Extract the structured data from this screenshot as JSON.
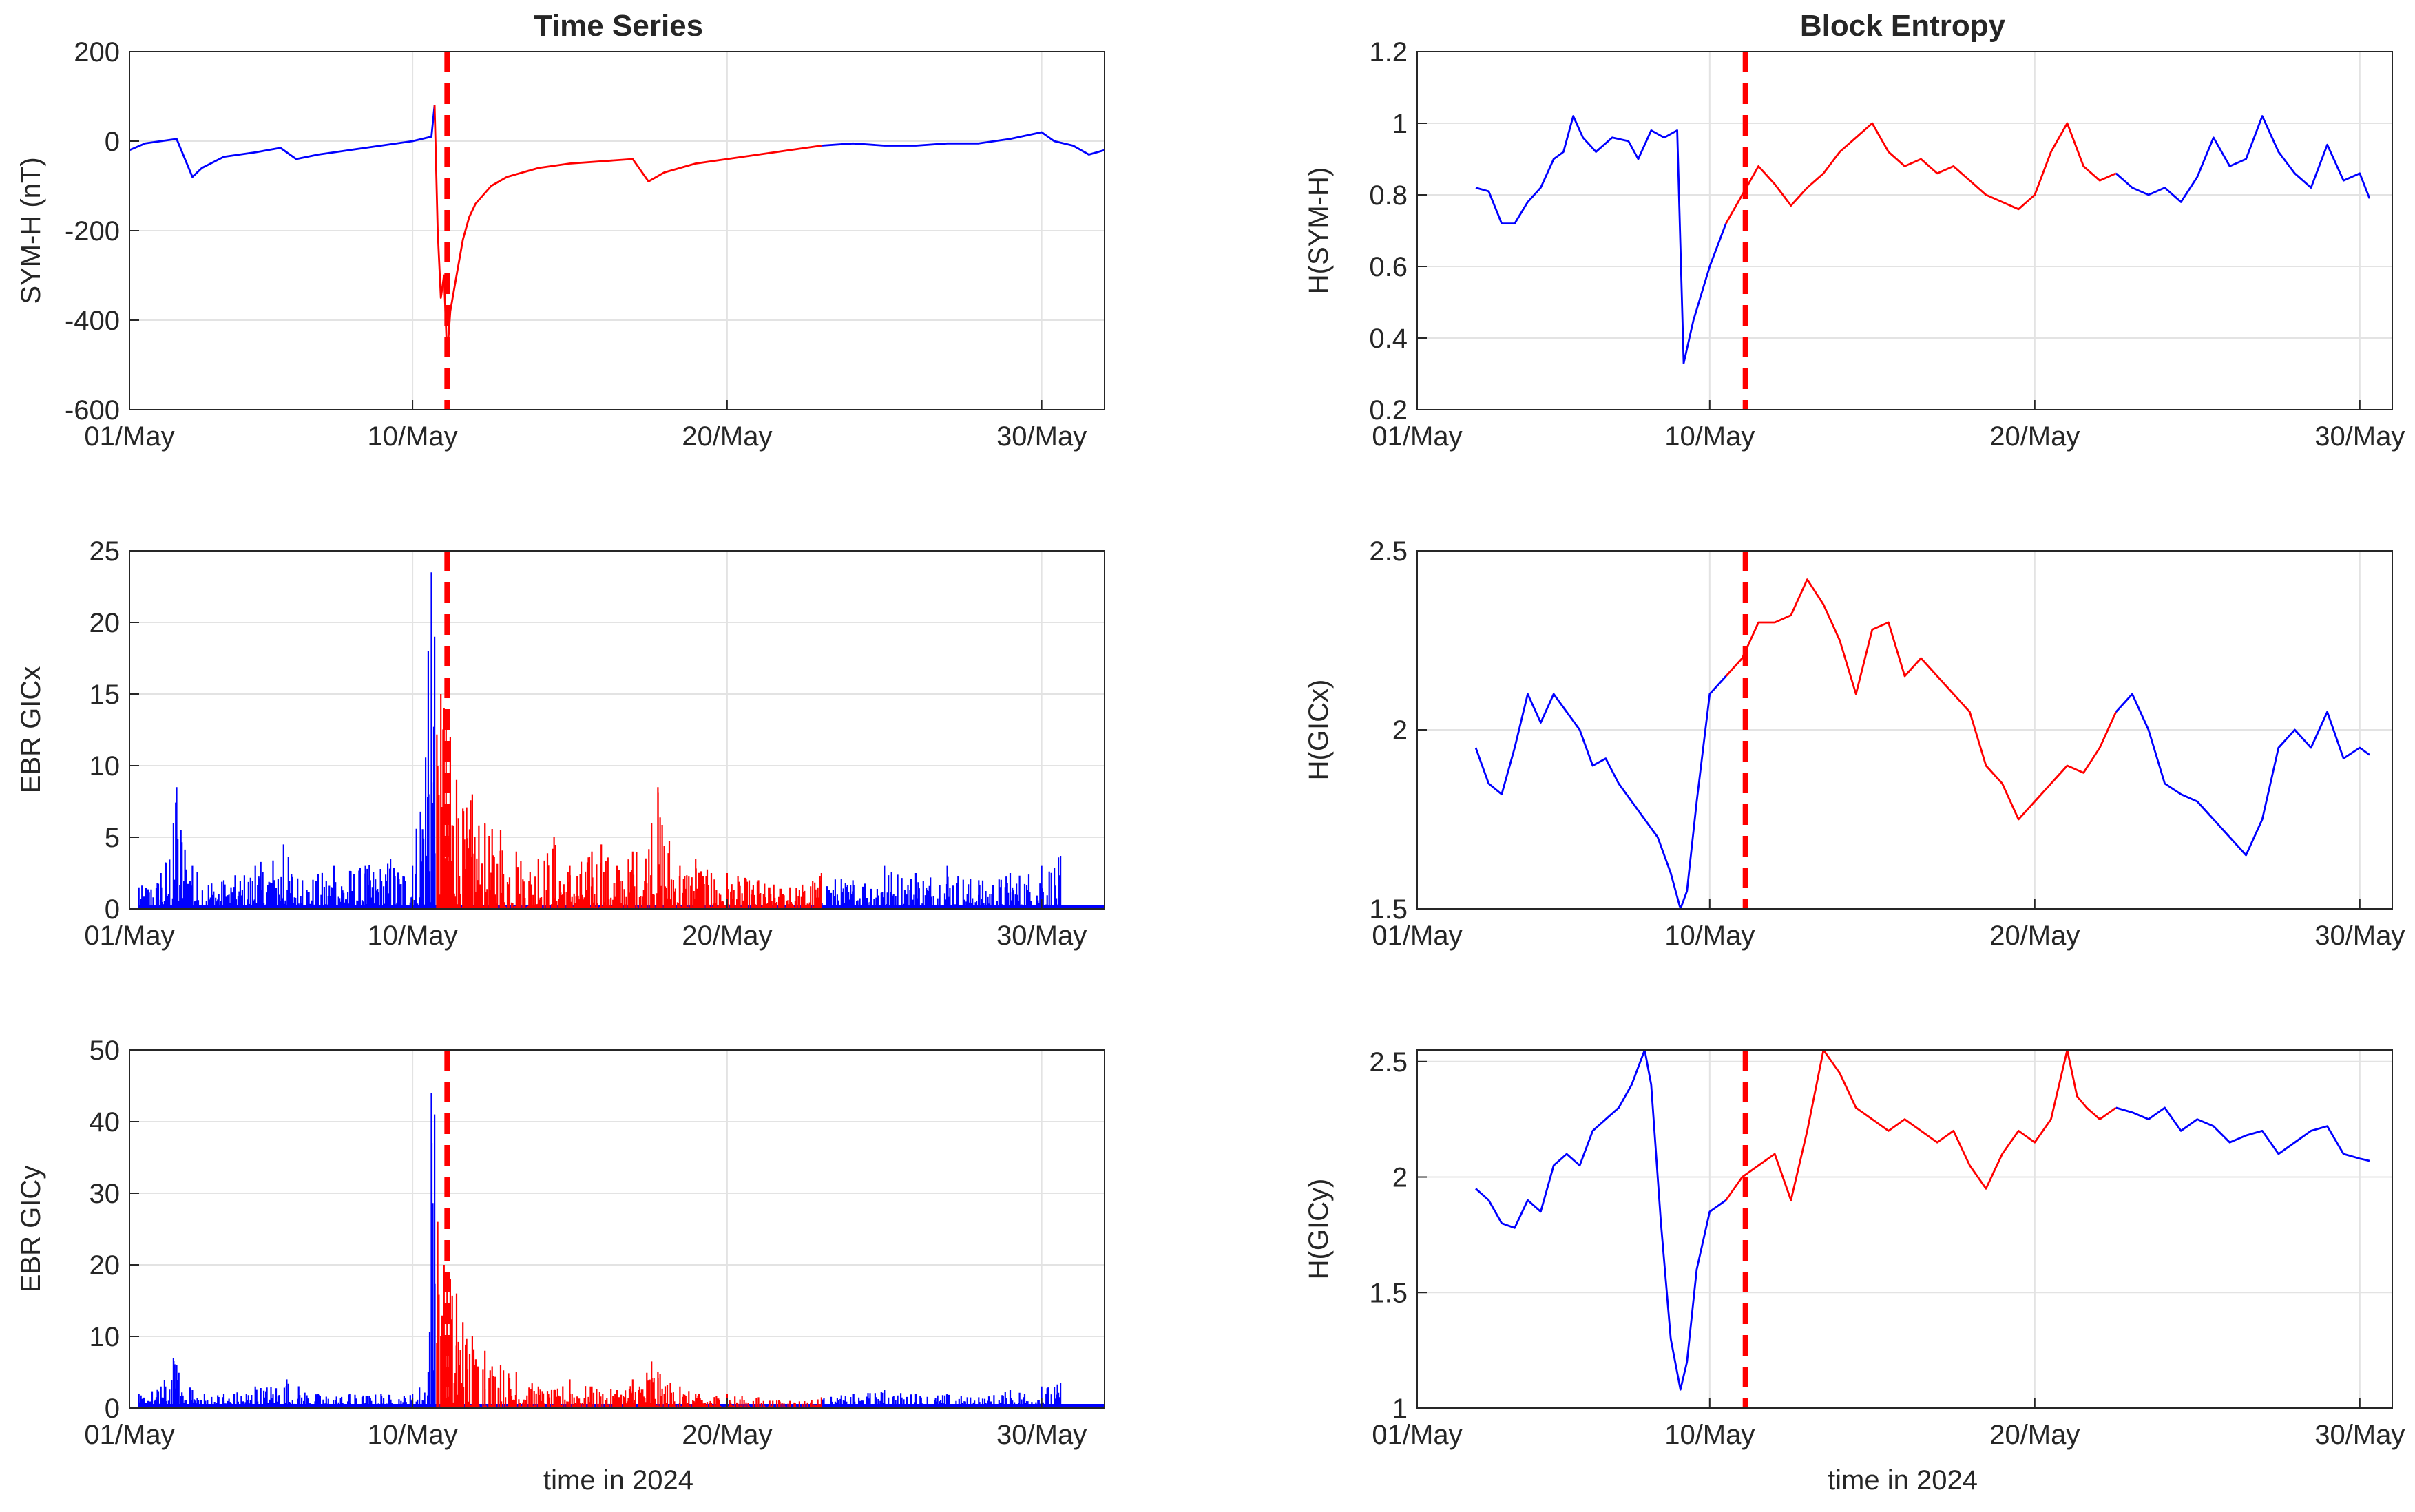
{
  "figure": {
    "columns": [
      {
        "title": "Time Series",
        "xlabel": "time in 2024"
      },
      {
        "title": "Block Entropy",
        "xlabel": "time in 2024"
      }
    ]
  },
  "colors": {
    "quiet": "#0000ff",
    "storm": "#ff0000",
    "event_line": "#ff0000",
    "grid": "#e3e3e3",
    "axes": "#262626"
  },
  "chart_data": [
    {
      "type": "line",
      "title": "Time Series",
      "ylabel": "SYM-H (nT)",
      "xlabel": "",
      "xlim": [
        1,
        32
      ],
      "ylim": [
        -600,
        200
      ],
      "xticks": [
        1,
        10,
        20,
        30
      ],
      "xtick_labels": [
        "01/May",
        "10/May",
        "20/May",
        "30/May"
      ],
      "yticks": [
        -600,
        -400,
        -200,
        0,
        200
      ],
      "ytick_labels": [
        "-600",
        "-400",
        "-200",
        "0",
        "200"
      ],
      "grid": true,
      "event_line_x": 11.1,
      "storm_interval": [
        10.75,
        23.0
      ],
      "style": "line",
      "x": [
        1,
        1.5,
        2,
        2.5,
        3,
        3.3,
        4,
        5,
        5.8,
        6.3,
        7,
        8,
        9,
        10,
        10.6,
        10.7,
        10.8,
        10.9,
        11.0,
        11.1,
        11.2,
        11.4,
        11.6,
        11.8,
        12,
        12.5,
        13,
        14,
        15,
        16,
        17,
        17.5,
        18,
        19,
        20,
        21,
        22,
        23,
        24,
        25,
        26,
        27,
        28,
        29,
        30,
        30.4,
        31,
        31.5,
        32
      ],
      "values": [
        -20,
        -5,
        0,
        5,
        -80,
        -60,
        -35,
        -25,
        -15,
        -40,
        -30,
        -20,
        -10,
        0,
        10,
        80,
        -200,
        -350,
        -300,
        -480,
        -380,
        -300,
        -220,
        -170,
        -140,
        -100,
        -80,
        -60,
        -50,
        -45,
        -40,
        -90,
        -70,
        -50,
        -40,
        -30,
        -20,
        -10,
        -5,
        -10,
        -10,
        -5,
        -5,
        5,
        20,
        0,
        -10,
        -30,
        -20
      ]
    },
    {
      "type": "line",
      "title": "Block Entropy",
      "ylabel": "H(SYM-H)",
      "xlabel": "",
      "xlim": [
        1,
        31
      ],
      "ylim": [
        0.2,
        1.2
      ],
      "xticks": [
        1,
        10,
        20,
        30
      ],
      "xtick_labels": [
        "01/May",
        "10/May",
        "20/May",
        "30/May"
      ],
      "yticks": [
        0.2,
        0.4,
        0.6,
        0.8,
        1.0,
        1.2
      ],
      "ytick_labels": [
        "0.2",
        "0.4",
        "0.6",
        "0.8",
        "1",
        "1.2"
      ],
      "grid": true,
      "event_line_x": 11.1,
      "storm_interval": [
        11.0,
        22.7
      ],
      "style": "line",
      "x": [
        2.8,
        3.2,
        3.6,
        4.0,
        4.4,
        4.8,
        5.2,
        5.5,
        5.8,
        6.1,
        6.5,
        7.0,
        7.5,
        7.8,
        8.2,
        8.6,
        9.0,
        9.2,
        9.5,
        10.0,
        10.5,
        11.0,
        11.5,
        12.0,
        12.5,
        13.0,
        13.5,
        14.0,
        14.5,
        15.0,
        15.5,
        16.0,
        16.5,
        17.0,
        17.5,
        18.0,
        18.5,
        19.0,
        19.5,
        20.0,
        20.5,
        21.0,
        21.5,
        22.0,
        22.5,
        23.0,
        23.5,
        24.0,
        24.5,
        25.0,
        25.5,
        26.0,
        26.5,
        27.0,
        27.5,
        28.0,
        28.5,
        29.0,
        29.5,
        30.0,
        30.3
      ],
      "values": [
        0.82,
        0.81,
        0.72,
        0.72,
        0.78,
        0.82,
        0.9,
        0.92,
        1.02,
        0.96,
        0.92,
        0.96,
        0.95,
        0.9,
        0.98,
        0.96,
        0.98,
        0.33,
        0.45,
        0.6,
        0.72,
        0.8,
        0.88,
        0.83,
        0.77,
        0.82,
        0.86,
        0.92,
        0.96,
        1.0,
        0.92,
        0.88,
        0.9,
        0.86,
        0.88,
        0.84,
        0.8,
        0.78,
        0.76,
        0.8,
        0.92,
        1.0,
        0.88,
        0.84,
        0.86,
        0.82,
        0.8,
        0.82,
        0.78,
        0.85,
        0.96,
        0.88,
        0.9,
        1.02,
        0.92,
        0.86,
        0.82,
        0.94,
        0.84,
        0.86,
        0.79
      ]
    },
    {
      "type": "line",
      "title": "",
      "ylabel": "EBR GICx",
      "xlabel": "",
      "xlim": [
        1,
        32
      ],
      "ylim": [
        0,
        25
      ],
      "xticks": [
        1,
        10,
        20,
        30
      ],
      "xtick_labels": [
        "01/May",
        "10/May",
        "20/May",
        "30/May"
      ],
      "yticks": [
        0,
        5,
        10,
        15,
        20,
        25
      ],
      "ytick_labels": [
        "0",
        "5",
        "10",
        "15",
        "20",
        "25"
      ],
      "grid": true,
      "event_line_x": 11.1,
      "storm_interval": [
        10.75,
        23.0
      ],
      "style": "spikes",
      "x": [
        1.3,
        2.0,
        2.4,
        2.5,
        3.0,
        4.0,
        5.0,
        5.9,
        6.5,
        7.5,
        8.5,
        9.3,
        10.0,
        10.5,
        10.6,
        10.7,
        10.8,
        10.9,
        11.0,
        11.2,
        11.4,
        11.6,
        11.9,
        12.3,
        12.8,
        13.3,
        14.0,
        14.5,
        15.0,
        15.7,
        16.0,
        16.5,
        17.0,
        17.6,
        17.8,
        18.5,
        19.0,
        19.5,
        20.0,
        21.0,
        22.0,
        23.0,
        24.0,
        25.0,
        26.0,
        27.0,
        28.0,
        29.0,
        30.0,
        30.6
      ],
      "values": [
        1.5,
        2.5,
        6.0,
        8.5,
        3.0,
        2.0,
        3.0,
        4.5,
        2.0,
        3.0,
        3.0,
        3.5,
        3.0,
        18.0,
        23.5,
        19.0,
        10.0,
        15.0,
        14.0,
        12.0,
        9.0,
        7.0,
        8.0,
        6.0,
        5.5,
        4.0,
        3.5,
        5.0,
        3.0,
        4.0,
        4.5,
        3.0,
        4.0,
        6.0,
        8.5,
        3.0,
        3.5,
        2.5,
        2.5,
        2.0,
        1.5,
        2.5,
        2.0,
        3.0,
        2.5,
        3.0,
        2.0,
        2.5,
        3.0,
        3.7
      ]
    },
    {
      "type": "line",
      "title": "",
      "ylabel": "H(GICx)",
      "xlabel": "",
      "xlim": [
        1,
        31
      ],
      "ylim": [
        1.5,
        2.5
      ],
      "xticks": [
        1,
        10,
        20,
        30
      ],
      "xtick_labels": [
        "01/May",
        "10/May",
        "20/May",
        "30/May"
      ],
      "yticks": [
        1.5,
        2.0,
        2.5
      ],
      "ytick_labels": [
        "1.5",
        "2",
        "2.5"
      ],
      "grid": true,
      "event_line_x": 11.1,
      "storm_interval": [
        11.0,
        22.7
      ],
      "style": "line",
      "x": [
        2.8,
        3.2,
        3.6,
        4.0,
        4.4,
        4.8,
        5.2,
        5.6,
        6.0,
        6.4,
        6.8,
        7.2,
        7.6,
        8.0,
        8.4,
        8.8,
        9.1,
        9.3,
        9.6,
        10.0,
        10.5,
        11.0,
        11.5,
        12.0,
        12.5,
        13.0,
        13.5,
        14.0,
        14.5,
        15.0,
        15.5,
        16.0,
        16.5,
        17.0,
        17.5,
        18.0,
        18.5,
        19.0,
        19.5,
        20.0,
        20.5,
        21.0,
        21.5,
        22.0,
        22.5,
        23.0,
        23.5,
        24.0,
        24.5,
        25.0,
        25.5,
        26.0,
        26.5,
        27.0,
        27.5,
        28.0,
        28.5,
        29.0,
        29.5,
        30.0,
        30.3
      ],
      "values": [
        1.95,
        1.85,
        1.82,
        1.95,
        2.1,
        2.02,
        2.1,
        2.05,
        2.0,
        1.9,
        1.92,
        1.85,
        1.8,
        1.75,
        1.7,
        1.6,
        1.5,
        1.55,
        1.8,
        2.1,
        2.15,
        2.2,
        2.3,
        2.3,
        2.32,
        2.42,
        2.35,
        2.25,
        2.1,
        2.28,
        2.3,
        2.15,
        2.2,
        2.15,
        2.1,
        2.05,
        1.9,
        1.85,
        1.75,
        1.8,
        1.85,
        1.9,
        1.88,
        1.95,
        2.05,
        2.1,
        2.0,
        1.85,
        1.82,
        1.8,
        1.75,
        1.7,
        1.65,
        1.75,
        1.95,
        2.0,
        1.95,
        2.05,
        1.92,
        1.95,
        1.93
      ]
    },
    {
      "type": "line",
      "title": "",
      "ylabel": "EBR GICy",
      "xlabel": "time in 2024",
      "xlim": [
        1,
        32
      ],
      "ylim": [
        0,
        50
      ],
      "xticks": [
        1,
        10,
        20,
        30
      ],
      "xtick_labels": [
        "01/May",
        "10/May",
        "20/May",
        "30/May"
      ],
      "yticks": [
        0,
        10,
        20,
        30,
        40,
        50
      ],
      "ytick_labels": [
        "0",
        "10",
        "20",
        "30",
        "40",
        "50"
      ],
      "grid": true,
      "event_line_x": 11.1,
      "storm_interval": [
        10.75,
        23.0
      ],
      "style": "spikes",
      "x": [
        1.3,
        2.0,
        2.4,
        2.5,
        3.0,
        4.0,
        5.0,
        6.0,
        7.0,
        8.0,
        9.0,
        10.0,
        10.5,
        10.6,
        10.7,
        10.8,
        10.9,
        11.0,
        11.2,
        11.4,
        11.6,
        11.9,
        12.3,
        12.8,
        13.3,
        14.0,
        14.5,
        15.0,
        15.7,
        16.5,
        17.0,
        17.6,
        17.8,
        18.5,
        19.0,
        20.0,
        21.0,
        22.0,
        23.0,
        24.0,
        25.0,
        26.0,
        27.0,
        28.0,
        29.0,
        30.0,
        30.6
      ],
      "values": [
        2.0,
        3.0,
        7.0,
        6.0,
        2.5,
        2.0,
        3.0,
        4.0,
        2.0,
        2.0,
        2.0,
        2.0,
        5.0,
        44.0,
        41.0,
        26.0,
        10.0,
        20.0,
        18.0,
        16.0,
        12.0,
        10.0,
        8.0,
        6.0,
        5.0,
        3.0,
        2.5,
        4.0,
        3.0,
        2.5,
        4.0,
        6.5,
        5.0,
        3.0,
        2.0,
        2.0,
        1.5,
        1.0,
        1.5,
        2.0,
        2.5,
        2.0,
        2.0,
        1.5,
        2.5,
        3.0,
        3.5
      ]
    },
    {
      "type": "line",
      "title": "",
      "ylabel": "H(GICy)",
      "xlabel": "time in 2024",
      "xlim": [
        1,
        31
      ],
      "ylim": [
        1.0,
        2.55
      ],
      "xticks": [
        1,
        10,
        20,
        30
      ],
      "xtick_labels": [
        "01/May",
        "10/May",
        "20/May",
        "30/May"
      ],
      "yticks": [
        1.0,
        1.5,
        2.0,
        2.5
      ],
      "ytick_labels": [
        "1",
        "1.5",
        "2",
        "2.5"
      ],
      "grid": true,
      "event_line_x": 11.1,
      "storm_interval": [
        11.0,
        22.7
      ],
      "style": "line",
      "x": [
        2.8,
        3.2,
        3.6,
        4.0,
        4.4,
        4.8,
        5.2,
        5.6,
        6.0,
        6.4,
        6.8,
        7.2,
        7.6,
        8.0,
        8.2,
        8.5,
        8.8,
        9.1,
        9.3,
        9.6,
        10.0,
        10.5,
        11.0,
        11.5,
        12.0,
        12.5,
        13.0,
        13.5,
        14.0,
        14.5,
        15.0,
        15.5,
        16.0,
        16.5,
        17.0,
        17.5,
        18.0,
        18.5,
        19.0,
        19.5,
        20.0,
        20.5,
        21.0,
        21.3,
        21.6,
        22.0,
        22.5,
        23.0,
        23.5,
        24.0,
        24.5,
        25.0,
        25.5,
        26.0,
        26.5,
        27.0,
        27.5,
        28.0,
        28.5,
        29.0,
        29.5,
        30.0,
        30.3
      ],
      "values": [
        1.95,
        1.9,
        1.8,
        1.78,
        1.9,
        1.85,
        2.05,
        2.1,
        2.05,
        2.2,
        2.25,
        2.3,
        2.4,
        2.55,
        2.4,
        1.8,
        1.3,
        1.08,
        1.2,
        1.6,
        1.85,
        1.9,
        2.0,
        2.05,
        2.1,
        1.9,
        2.2,
        2.55,
        2.45,
        2.3,
        2.25,
        2.2,
        2.25,
        2.2,
        2.15,
        2.2,
        2.05,
        1.95,
        2.1,
        2.2,
        2.15,
        2.25,
        2.55,
        2.35,
        2.3,
        2.25,
        2.3,
        2.28,
        2.25,
        2.3,
        2.2,
        2.25,
        2.22,
        2.15,
        2.18,
        2.2,
        2.1,
        2.15,
        2.2,
        2.22,
        2.1,
        2.08,
        2.07
      ]
    }
  ]
}
